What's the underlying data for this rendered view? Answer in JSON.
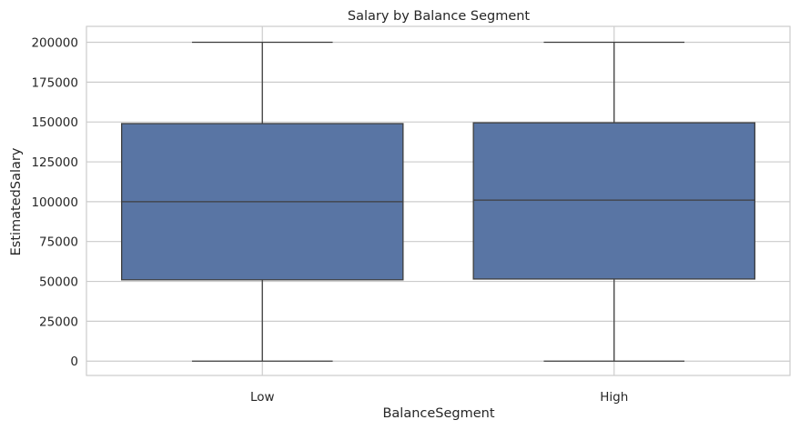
{
  "chart_data": {
    "type": "box",
    "title": "Salary by Balance Segment",
    "xlabel": "BalanceSegment",
    "ylabel": "EstimatedSalary",
    "categories": [
      "Low",
      "High"
    ],
    "boxes": [
      {
        "category": "Low",
        "whisker_low": 0,
        "q1": 51000,
        "median": 100000,
        "q3": 149000,
        "whisker_high": 200000
      },
      {
        "category": "High",
        "whisker_low": 0,
        "q1": 51500,
        "median": 101000,
        "q3": 149500,
        "whisker_high": 200000
      }
    ],
    "ylim": [
      -9000,
      210000
    ],
    "yticks": [
      0,
      25000,
      50000,
      75000,
      100000,
      125000,
      150000,
      175000,
      200000
    ],
    "ytick_labels": [
      "0",
      "25000",
      "50000",
      "75000",
      "100000",
      "125000",
      "150000",
      "175000",
      "200000"
    ],
    "grid": true,
    "box_color": "#5975a4",
    "line_color": "#3f3f3f",
    "grid_color": "#cccccc"
  }
}
